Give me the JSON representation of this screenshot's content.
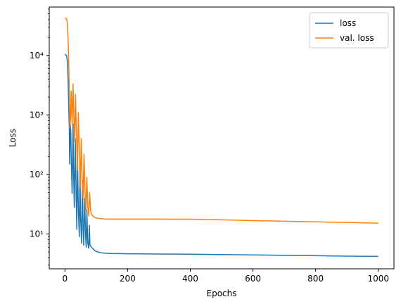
{
  "chart_data": {
    "type": "line",
    "title": "",
    "xlabel": "Epochs",
    "ylabel": "Loss",
    "xlim": [
      -50,
      1050
    ],
    "ylim": [
      2.6,
      65000
    ],
    "yscale": "log",
    "grid": false,
    "legend_position": "top-right",
    "x_ticks": [
      0,
      200,
      400,
      600,
      800,
      1000
    ],
    "x_tick_labels": [
      "0",
      "200",
      "400",
      "600",
      "800",
      "1000"
    ],
    "y_ticks": [
      10,
      100,
      1000,
      10000
    ],
    "y_tick_labels": [
      "10¹",
      "10²",
      "10³",
      "10⁴"
    ],
    "series": [
      {
        "name": "loss",
        "color": "#1f77b4",
        "x": [
          0,
          5,
          8,
          10,
          12,
          14,
          15,
          17,
          19,
          20,
          23,
          26,
          28,
          30,
          33,
          36,
          38,
          40,
          43,
          46,
          48,
          50,
          53,
          56,
          58,
          60,
          63,
          66,
          68,
          70,
          73,
          76,
          78,
          80,
          85,
          90,
          95,
          100,
          110,
          120,
          130,
          150,
          200,
          300,
          400,
          500,
          600,
          700,
          800,
          900,
          1000
        ],
        "y": [
          10500,
          10000,
          8000,
          4000,
          1500,
          600,
          150,
          700,
          500,
          200,
          48,
          700,
          90,
          28,
          400,
          40,
          12,
          200,
          25,
          9,
          150,
          20,
          7,
          80,
          12,
          6.5,
          40,
          9,
          6,
          25,
          7,
          5.8,
          14,
          6.5,
          6,
          5.6,
          5.3,
          5.1,
          4.9,
          4.8,
          4.75,
          4.7,
          4.65,
          4.6,
          4.58,
          4.52,
          4.45,
          4.38,
          4.32,
          4.25,
          4.2
        ]
      },
      {
        "name": "val. loss",
        "color": "#ff7f0e",
        "x": [
          0,
          4,
          6,
          8,
          10,
          12,
          14,
          16,
          18,
          20,
          23,
          26,
          28,
          31,
          34,
          37,
          40,
          43,
          46,
          49,
          52,
          55,
          58,
          61,
          64,
          67,
          70,
          73,
          76,
          79,
          82,
          85,
          90,
          95,
          100,
          110,
          120,
          130,
          150,
          200,
          300,
          400,
          500,
          600,
          700,
          800,
          900,
          1000
        ],
        "y": [
          42000,
          42000,
          40000,
          34000,
          20000,
          8000,
          2500,
          600,
          900,
          2500,
          700,
          3300,
          1200,
          350,
          2200,
          400,
          120,
          1100,
          250,
          60,
          400,
          80,
          40,
          220,
          55,
          25,
          90,
          30,
          20,
          50,
          25,
          21,
          20,
          19,
          18.5,
          18.2,
          18,
          17.8,
          17.8,
          17.8,
          17.8,
          17.7,
          17.3,
          16.8,
          16.4,
          16.0,
          15.6,
          15.2
        ]
      }
    ]
  }
}
